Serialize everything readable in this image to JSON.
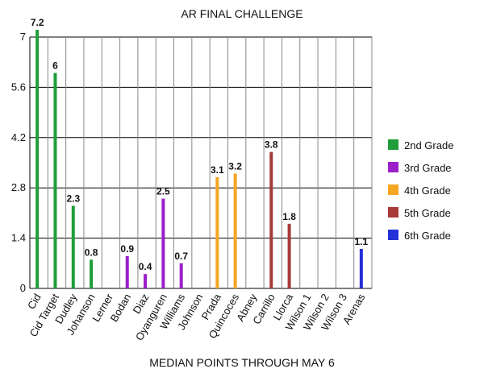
{
  "chart_data": {
    "type": "bar",
    "title": "AR FINAL CHALLENGE",
    "xlabel": "MEDIAN POINTS THROUGH MAY 6",
    "ylabel": "",
    "ylim": [
      0,
      7
    ],
    "yticks": [
      "0",
      "1.4",
      "2.8",
      "4.2",
      "5.6",
      "7"
    ],
    "grid": true,
    "legend_position": "right",
    "categories": [
      "Cid",
      "Cid Target",
      "Dudley",
      "Johanson",
      "Lerner",
      "Bodan",
      "Diaz",
      "Oyanguren",
      "Williams",
      "Johnson",
      "Prada",
      "Quincoces",
      "Abney",
      "Carrillo",
      "Llorca",
      "Wilson 1",
      "Wilson 2",
      "Wilson 3",
      "Arenas"
    ],
    "series": [
      {
        "name": "2nd Grade",
        "color": "#1e9e3a",
        "values": [
          7.2,
          6,
          2.3,
          0.8,
          null,
          null,
          null,
          null,
          null,
          null,
          null,
          null,
          null,
          null,
          null,
          null,
          null,
          null,
          null
        ]
      },
      {
        "name": "3rd Grade",
        "color": "#9b1fc9",
        "values": [
          null,
          null,
          null,
          null,
          null,
          0.9,
          0.4,
          2.5,
          0.7,
          null,
          null,
          null,
          null,
          null,
          null,
          null,
          null,
          null,
          null
        ]
      },
      {
        "name": "4th Grade",
        "color": "#f5a623",
        "values": [
          null,
          null,
          null,
          null,
          null,
          null,
          null,
          null,
          null,
          null,
          3.1,
          3.2,
          null,
          null,
          null,
          null,
          null,
          null,
          null
        ]
      },
      {
        "name": "5th Grade",
        "color": "#a83a3a",
        "values": [
          null,
          null,
          null,
          null,
          null,
          null,
          null,
          null,
          null,
          null,
          null,
          null,
          null,
          3.8,
          1.8,
          null,
          null,
          null,
          null
        ]
      },
      {
        "name": "6th Grade",
        "color": "#2430d8",
        "values": [
          null,
          null,
          null,
          null,
          null,
          null,
          null,
          null,
          null,
          null,
          null,
          null,
          null,
          null,
          null,
          null,
          null,
          null,
          1.1
        ]
      }
    ],
    "data_labels": [
      "7.2",
      "6",
      "2.3",
      "0.8",
      "",
      "0.9",
      "0.4",
      "2.5",
      "0.7",
      "",
      "3.1",
      "3.2",
      "",
      "3.8",
      "1.8",
      "",
      "",
      "",
      "1.1"
    ]
  }
}
